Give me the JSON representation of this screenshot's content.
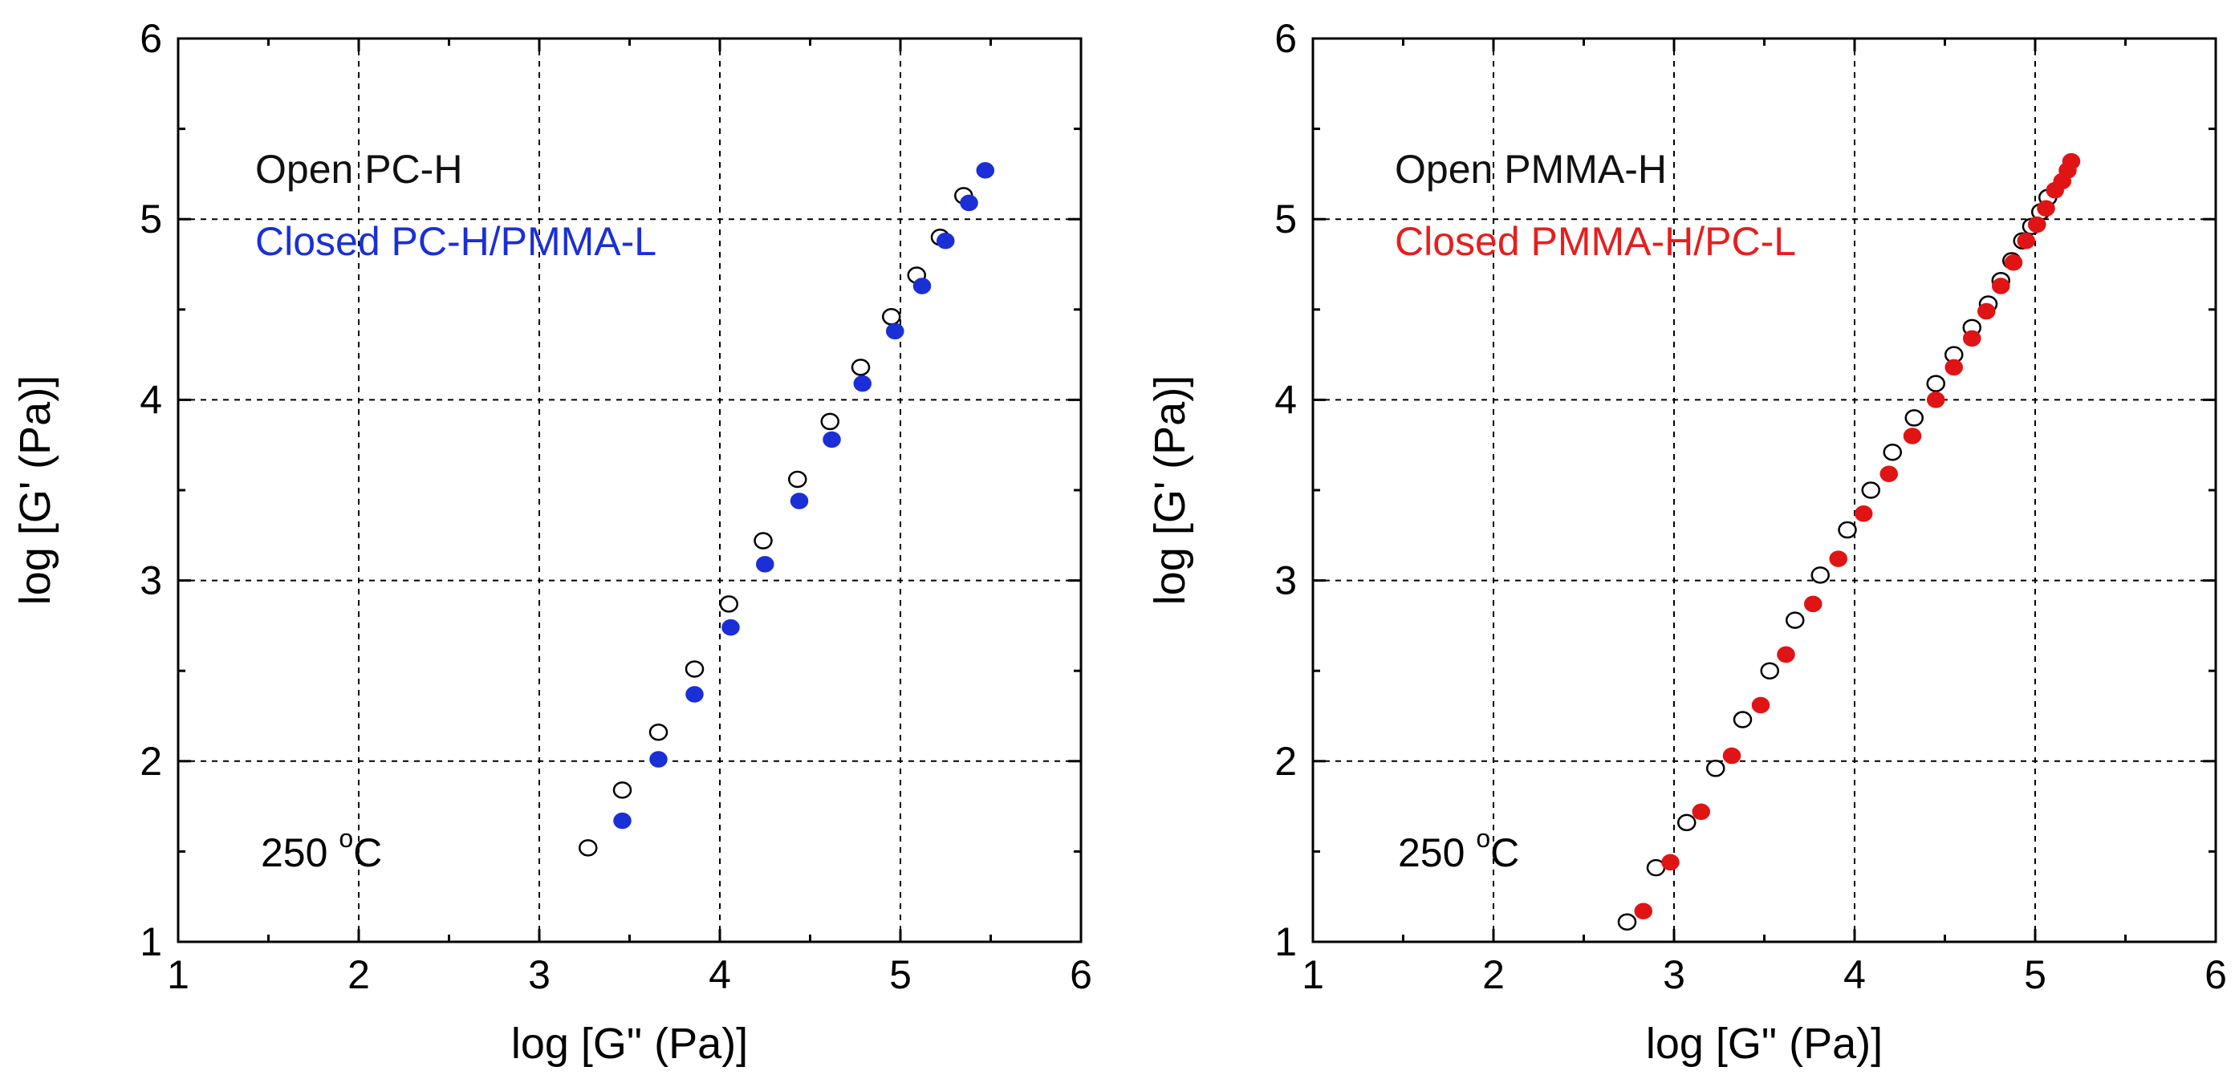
{
  "chart_data": [
    {
      "type": "scatter",
      "xlabel": "log [G\" (Pa)]",
      "ylabel": "log [G' (Pa)]",
      "xlim": [
        1,
        6
      ],
      "ylim": [
        1,
        6
      ],
      "xticks": [
        "1",
        "2",
        "3",
        "4",
        "5",
        "6"
      ],
      "yticks": [
        "1",
        "2",
        "3",
        "4",
        "5",
        "6"
      ],
      "grid": true,
      "legend_position": "top-left",
      "annotation": {
        "text": "250 ",
        "superscript": "o",
        "unit": "C"
      },
      "series": [
        {
          "name": "Open PC-H",
          "marker": "open-circle",
          "color": "#000000",
          "legend_color": "#111111",
          "points": [
            [
              3.27,
              1.52
            ],
            [
              3.46,
              1.84
            ],
            [
              3.66,
              2.16
            ],
            [
              3.86,
              2.51
            ],
            [
              4.05,
              2.87
            ],
            [
              4.24,
              3.22
            ],
            [
              4.43,
              3.56
            ],
            [
              4.61,
              3.88
            ],
            [
              4.78,
              4.18
            ],
            [
              4.95,
              4.46
            ],
            [
              5.09,
              4.69
            ],
            [
              5.22,
              4.9
            ],
            [
              5.35,
              5.13
            ]
          ]
        },
        {
          "name": "Closed PC-H/PMMA-L",
          "marker": "filled-circle",
          "color": "#1a2fd6",
          "legend_color": "#1a2fd6",
          "points": [
            [
              3.46,
              1.67
            ],
            [
              3.66,
              2.01
            ],
            [
              3.86,
              2.37
            ],
            [
              4.06,
              2.74
            ],
            [
              4.25,
              3.09
            ],
            [
              4.44,
              3.44
            ],
            [
              4.62,
              3.78
            ],
            [
              4.79,
              4.09
            ],
            [
              4.97,
              4.38
            ],
            [
              5.12,
              4.63
            ],
            [
              5.25,
              4.88
            ],
            [
              5.38,
              5.09
            ],
            [
              5.47,
              5.27
            ]
          ]
        }
      ]
    },
    {
      "type": "scatter",
      "xlabel": "log [G\" (Pa)]",
      "ylabel": "log [G' (Pa)]",
      "xlim": [
        1,
        6
      ],
      "ylim": [
        1,
        6
      ],
      "xticks": [
        "1",
        "2",
        "3",
        "4",
        "5",
        "6"
      ],
      "yticks": [
        "1",
        "2",
        "3",
        "4",
        "5",
        "6"
      ],
      "grid": true,
      "legend_position": "top-left",
      "annotation": {
        "text": "250 ",
        "superscript": "o",
        "unit": "C"
      },
      "series": [
        {
          "name": "Open PMMA-H",
          "marker": "open-circle",
          "color": "#000000",
          "legend_color": "#111111",
          "points": [
            [
              2.74,
              1.11
            ],
            [
              2.9,
              1.41
            ],
            [
              3.07,
              1.66
            ],
            [
              3.23,
              1.96
            ],
            [
              3.38,
              2.23
            ],
            [
              3.53,
              2.5
            ],
            [
              3.67,
              2.78
            ],
            [
              3.81,
              3.03
            ],
            [
              3.96,
              3.28
            ],
            [
              4.09,
              3.5
            ],
            [
              4.21,
              3.71
            ],
            [
              4.33,
              3.9
            ],
            [
              4.45,
              4.09
            ],
            [
              4.55,
              4.25
            ],
            [
              4.65,
              4.4
            ],
            [
              4.74,
              4.53
            ],
            [
              4.81,
              4.66
            ],
            [
              4.87,
              4.77
            ],
            [
              4.93,
              4.88
            ],
            [
              4.98,
              4.96
            ],
            [
              5.03,
              5.04
            ],
            [
              5.07,
              5.12
            ]
          ]
        },
        {
          "name": "Closed PMMA-H/PC-L",
          "marker": "filled-circle",
          "color": "#e01414",
          "legend_color": "#e61e1e",
          "points": [
            [
              2.83,
              1.17
            ],
            [
              2.98,
              1.44
            ],
            [
              3.15,
              1.72
            ],
            [
              3.32,
              2.03
            ],
            [
              3.48,
              2.31
            ],
            [
              3.62,
              2.59
            ],
            [
              3.77,
              2.87
            ],
            [
              3.91,
              3.12
            ],
            [
              4.05,
              3.37
            ],
            [
              4.19,
              3.59
            ],
            [
              4.32,
              3.8
            ],
            [
              4.45,
              4.0
            ],
            [
              4.55,
              4.18
            ],
            [
              4.65,
              4.34
            ],
            [
              4.73,
              4.49
            ],
            [
              4.81,
              4.63
            ],
            [
              4.88,
              4.76
            ],
            [
              4.95,
              4.88
            ],
            [
              5.01,
              4.97
            ],
            [
              5.06,
              5.06
            ],
            [
              5.11,
              5.16
            ],
            [
              5.15,
              5.21
            ],
            [
              5.18,
              5.27
            ],
            [
              5.2,
              5.32
            ]
          ]
        }
      ]
    }
  ]
}
